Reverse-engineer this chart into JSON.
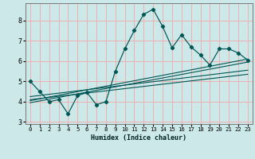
{
  "xlabel": "Humidex (Indice chaleur)",
  "background_color": "#cce8e8",
  "grid_color": "#f0b0b0",
  "line_color": "#005555",
  "xlim": [
    -0.5,
    23.5
  ],
  "ylim": [
    2.9,
    8.85
  ],
  "yticks": [
    3,
    4,
    5,
    6,
    7,
    8
  ],
  "xticks": [
    0,
    1,
    2,
    3,
    4,
    5,
    6,
    7,
    8,
    9,
    10,
    11,
    12,
    13,
    14,
    15,
    16,
    17,
    18,
    19,
    20,
    21,
    22,
    23
  ],
  "main_x": [
    0,
    1,
    2,
    3,
    4,
    5,
    6,
    7,
    8,
    9,
    10,
    11,
    12,
    13,
    14,
    15,
    16,
    17,
    18,
    19,
    20,
    21,
    22,
    23
  ],
  "main_y": [
    5.0,
    4.5,
    4.0,
    4.1,
    3.4,
    4.3,
    4.45,
    3.85,
    4.0,
    5.5,
    6.6,
    7.5,
    8.3,
    8.55,
    7.7,
    6.65,
    7.3,
    6.7,
    6.3,
    5.8,
    6.6,
    6.6,
    6.4,
    6.05
  ],
  "line1_x": [
    0,
    23
  ],
  "line1_y": [
    4.25,
    5.55
  ],
  "line2_x": [
    0,
    23
  ],
  "line2_y": [
    4.1,
    5.35
  ],
  "line3_x": [
    0,
    23
  ],
  "line3_y": [
    4.05,
    6.1
  ],
  "line4_x": [
    0,
    23
  ],
  "line4_y": [
    3.95,
    5.95
  ]
}
